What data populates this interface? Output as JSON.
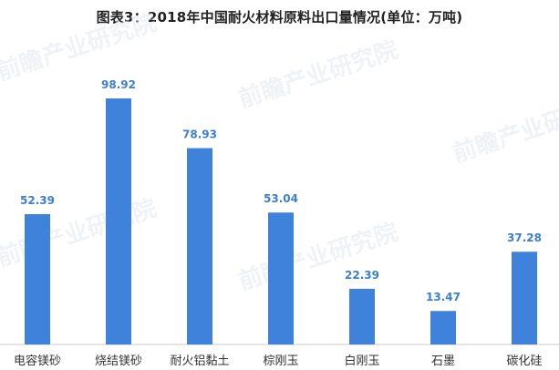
{
  "colors": {
    "bar": "#3f82db",
    "value_label": "#3a7fd5",
    "axis": "#c8c8c8",
    "text": "#333333"
  },
  "watermark_text": "前瞻产业研究院",
  "chart_data": {
    "type": "bar",
    "title": "图表3：2018年中国耐火材料原料出口量情况(单位：万吨)",
    "categories": [
      "电容镁砂",
      "烧结镁砂",
      "耐火铝黏土",
      "棕刚玉",
      "白刚玉",
      "石墨",
      "碳化硅"
    ],
    "values": [
      52.39,
      98.92,
      78.93,
      53.04,
      22.39,
      13.47,
      37.28
    ],
    "value_labels": [
      "52.39",
      "98.92",
      "78.93",
      "53.04",
      "22.39",
      "13.47",
      "37.28"
    ],
    "xlabel": "",
    "ylabel": "",
    "ylim": [
      0,
      100
    ],
    "grid": false,
    "legend": "none"
  }
}
